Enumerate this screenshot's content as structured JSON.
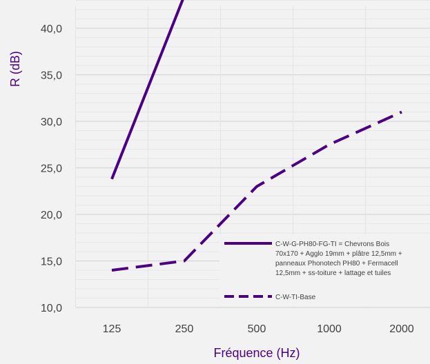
{
  "chart_data": {
    "type": "line",
    "title": "",
    "xlabel": "Fréquence (Hz)",
    "ylabel": "R (dB)",
    "categories": [
      "125",
      "250",
      "500",
      "1000",
      "2000"
    ],
    "ylim": [
      10,
      42.5
    ],
    "yticks": [
      "10,0",
      "15,0",
      "20,0",
      "25,0",
      "30,0",
      "35,0",
      "40,0"
    ],
    "grid": true,
    "legend_position": "bottom-right",
    "colors": {
      "series": "#4b0082",
      "text": "#404040",
      "grid": "#d9d9d9",
      "background": "#f2f2f2"
    },
    "series": [
      {
        "name": "C-W-G-PH80-FG-TI = Chevrons Bois 70x170 + Agglo 19mm + plâtre 12,5mm + panneaux Phonotech PH80 + Fermacell 12,5mm + ss-toiture + lattage et tuiles",
        "legend_lines": [
          "C-W-G-PH80-FG-TI = Chevrons Bois",
          "70x170 + Agglo 19mm + plâtre 12,5mm +",
          "panneaux Phonotech PH80 + Fermacell",
          "12,5mm + ss-toiture + lattage et tuiles"
        ],
        "style": "solid",
        "values": [
          23.8,
          43.5,
          null,
          null,
          null
        ]
      },
      {
        "name": "C-W-TI-Base",
        "legend_lines": [
          "C-W-TI-Base"
        ],
        "style": "dashed",
        "values": [
          14.0,
          15.0,
          23.0,
          27.5,
          31.0
        ]
      }
    ]
  }
}
